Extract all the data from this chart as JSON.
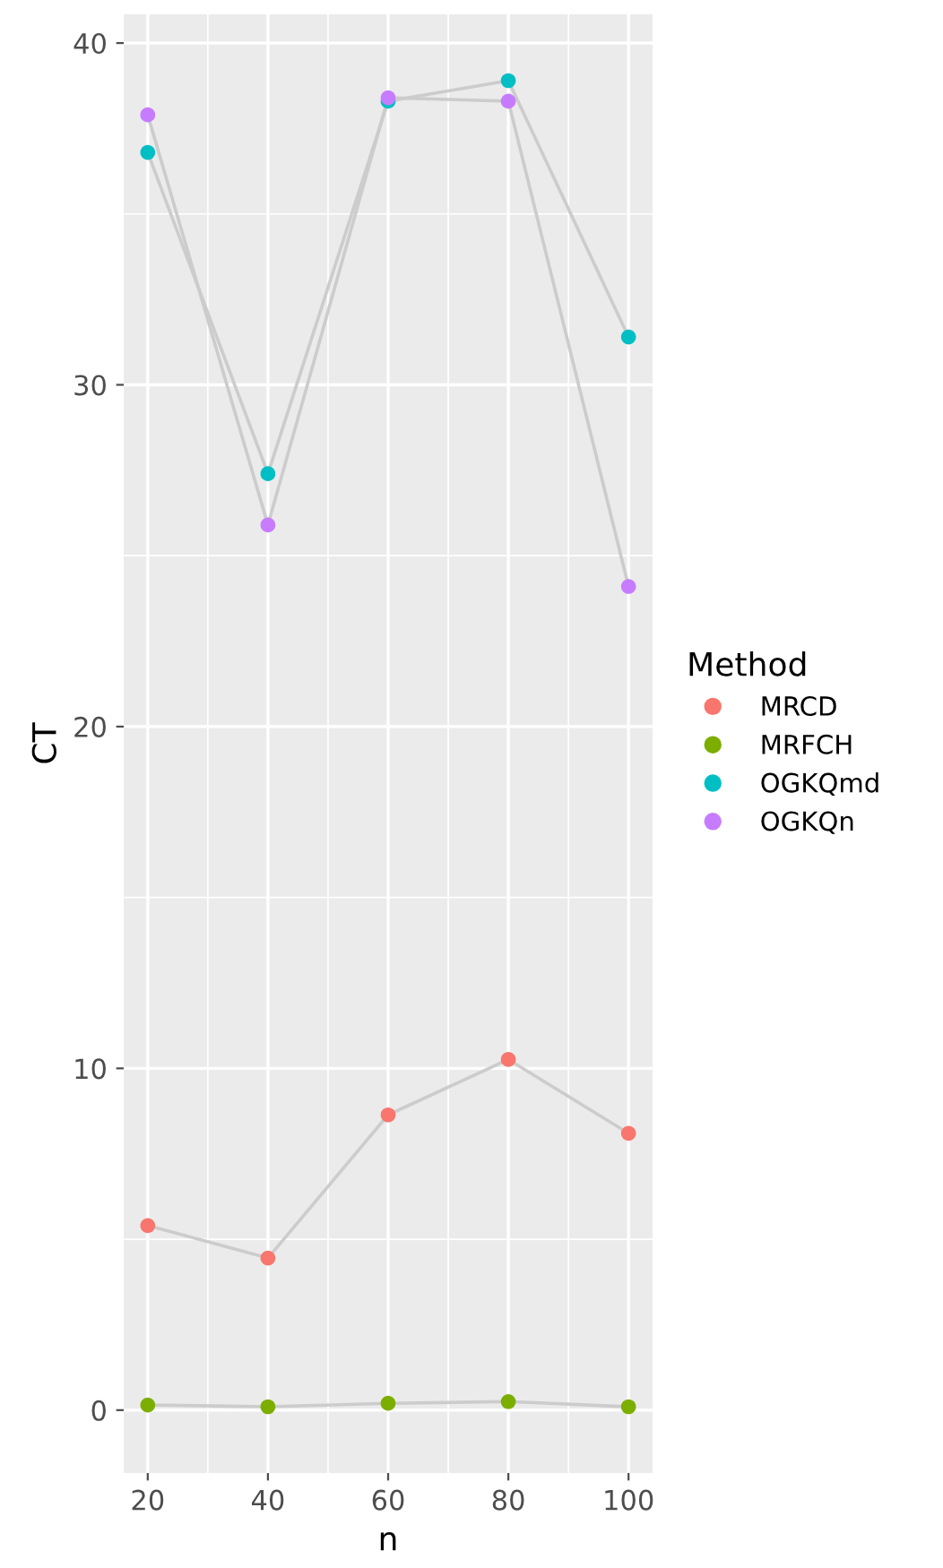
{
  "chart_data": {
    "type": "scatter",
    "xlabel": "n",
    "ylabel": "CT",
    "legend_title": "Method",
    "x": [
      20,
      40,
      60,
      80,
      100
    ],
    "series": [
      {
        "type": "line",
        "marker": "none",
        "color": "#cccccc",
        "values": [
          5.4,
          4.45,
          8.64,
          10.26,
          8.1
        ]
      },
      {
        "type": "line",
        "marker": "none",
        "color": "#cccccc",
        "values": [
          0.15,
          0.1,
          0.2,
          0.25,
          0.1
        ]
      },
      {
        "type": "line",
        "marker": "none",
        "color": "#cccccc",
        "values": [
          36.8,
          27.4,
          38.3,
          38.9,
          31.4
        ]
      },
      {
        "type": "line",
        "marker": "none",
        "color": "#cccccc",
        "values": [
          37.9,
          25.9,
          38.4,
          38.3,
          24.1
        ]
      },
      {
        "name": "MRCD",
        "color": "#F8766D",
        "values": [
          5.4,
          4.45,
          8.64,
          10.26,
          8.1
        ]
      },
      {
        "name": "MRFCH",
        "color": "#7CAE00",
        "values": [
          0.15,
          0.1,
          0.2,
          0.25,
          0.1
        ]
      },
      {
        "name": "OGKQmd",
        "color": "#00BFC4",
        "values": [
          36.8,
          27.4,
          38.3,
          38.9,
          31.4
        ]
      },
      {
        "name": "OGKQn",
        "color": "#C77CFF",
        "values": [
          37.9,
          25.9,
          38.4,
          38.3,
          24.1
        ]
      }
    ],
    "xlim": [
      16,
      104
    ],
    "ylim": [
      -1.84,
      40.84
    ],
    "xticks": [
      20,
      40,
      60,
      80,
      100
    ],
    "yticks": [
      0,
      10,
      20,
      30,
      40
    ],
    "grid": true,
    "legend": "right",
    "marker": "circle"
  }
}
